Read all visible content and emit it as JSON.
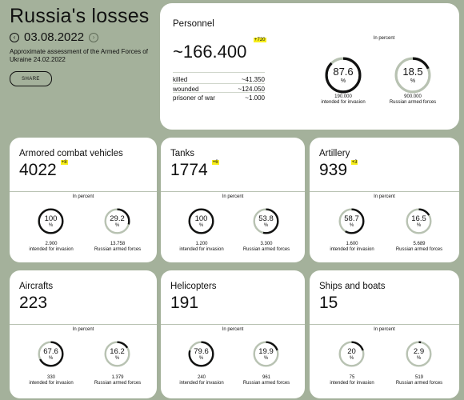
{
  "header": {
    "title": "Russia's losses",
    "date": "03.08.2022",
    "prev_icon": "chevron-left",
    "next_icon": "chevron-right",
    "subtitle": "Approximate assessment of the Armed Forces of Ukraine 24.02.2022",
    "share_label": "SHARE"
  },
  "colors": {
    "background": "#a4b19b",
    "card": "#ffffff",
    "highlight": "#f7ee1b",
    "gauge_track": "#b8c2b2",
    "gauge_fill": "#111111"
  },
  "personnel": {
    "title": "Personnel",
    "value": "~166.400",
    "delta": "+720",
    "rows": [
      {
        "label": "killed",
        "value": "~41.350"
      },
      {
        "label": "wounded",
        "value": "~124.050"
      },
      {
        "label": "prisoner of war",
        "value": "~1.000"
      }
    ],
    "percent_label": "In percent",
    "gauges": [
      {
        "value": "87.6",
        "fraction": 0.876,
        "sign": "%",
        "caption_num": "190.000",
        "caption_text": "intended for invasion"
      },
      {
        "value": "18.5",
        "fraction": 0.185,
        "sign": "%",
        "caption_num": "900.000",
        "caption_text": "Russian armed forces"
      }
    ]
  },
  "cards": [
    {
      "title": "Armored combat vehicles",
      "value": "4022",
      "delta": "+8",
      "percent_label": "In percent",
      "gauges": [
        {
          "value": "100",
          "fraction": 1.0,
          "sign": "%",
          "caption_num": "2.900",
          "caption_text": "intended for invasion"
        },
        {
          "value": "29.2",
          "fraction": 0.292,
          "sign": "%",
          "caption_num": "13.758",
          "caption_text": "Russian armed forces"
        }
      ]
    },
    {
      "title": "Tanks",
      "value": "1774",
      "delta": "+6",
      "percent_label": "In percent",
      "gauges": [
        {
          "value": "100",
          "fraction": 1.0,
          "sign": "%",
          "caption_num": "1.200",
          "caption_text": "intended for invasion"
        },
        {
          "value": "53.8",
          "fraction": 0.538,
          "sign": "%",
          "caption_num": "3.300",
          "caption_text": "Russian armed forces"
        }
      ]
    },
    {
      "title": "Artillery",
      "value": "939",
      "delta": "+3",
      "percent_label": "In percent",
      "gauges": [
        {
          "value": "58.7",
          "fraction": 0.587,
          "sign": "%",
          "caption_num": "1.600",
          "caption_text": "intended for invasion"
        },
        {
          "value": "16.5",
          "fraction": 0.165,
          "sign": "%",
          "caption_num": "5.689",
          "caption_text": "Russian armed forces"
        }
      ]
    },
    {
      "title": "Aircrafts",
      "value": "223",
      "delta": "",
      "percent_label": "In percent",
      "gauges": [
        {
          "value": "67.6",
          "fraction": 0.676,
          "sign": "%",
          "caption_num": "330",
          "caption_text": "intended for invasion"
        },
        {
          "value": "16.2",
          "fraction": 0.162,
          "sign": "%",
          "caption_num": "1.379",
          "caption_text": "Russian armed forces"
        }
      ]
    },
    {
      "title": "Helicopters",
      "value": "191",
      "delta": "",
      "percent_label": "In percent",
      "gauges": [
        {
          "value": "79.6",
          "fraction": 0.796,
          "sign": "%",
          "caption_num": "240",
          "caption_text": "intended for invasion"
        },
        {
          "value": "19.9",
          "fraction": 0.199,
          "sign": "%",
          "caption_num": "961",
          "caption_text": "Russian armed forces"
        }
      ]
    },
    {
      "title": "Ships and boats",
      "value": "15",
      "delta": "",
      "percent_label": "In percent",
      "gauges": [
        {
          "value": "20",
          "fraction": 0.2,
          "sign": "%",
          "caption_num": "75",
          "caption_text": "intended for invasion"
        },
        {
          "value": "2.9",
          "fraction": 0.029,
          "sign": "%",
          "caption_num": "519",
          "caption_text": "Russian armed forces"
        }
      ]
    }
  ]
}
